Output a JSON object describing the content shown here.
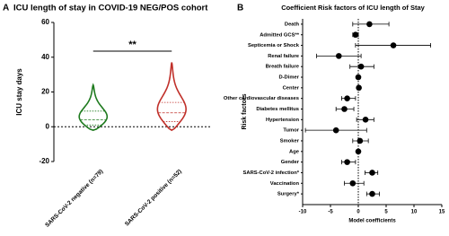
{
  "chart_data": [
    {
      "type": "violin",
      "panel": "A",
      "title": "ICU length of stay in COVID-19 NEG/POS cohort",
      "y_label": "ICU stay days",
      "categories": [
        "SARS-CoV-2 negative (n=79)",
        "SARS-CoV-2 positive (n=52)"
      ],
      "series": [
        {
          "color": "#1e7a1e",
          "min": -2,
          "q1": 1,
          "median": 4,
          "q3": 9,
          "max": 24
        },
        {
          "color": "#c0302a",
          "min": -2,
          "q1": 3,
          "median": 8,
          "q3": 14,
          "max": 37
        }
      ],
      "annotation": "**",
      "ylim": [
        -20,
        60
      ],
      "yticks": [
        -20,
        0,
        20,
        40,
        60
      ]
    },
    {
      "type": "forest",
      "panel": "B",
      "title": "Coefficient Risk factors of ICU length of Stay",
      "x_label": "Model coefficients",
      "y_label": "Risk factors",
      "categories": [
        "Death",
        "Admitted GCS**",
        "Septicemia or Shock",
        "Renal failure",
        "Breath failure",
        "D-Dimer",
        "Center",
        "Other cardiovascular diseases",
        "Diabetes mellitus",
        "Hypertension",
        "Tumor",
        "Smoker",
        "Age",
        "Gender",
        "SARS-CoV-2 infection*",
        "Vaccination",
        "Surgery*"
      ],
      "values": [
        2,
        -0.5,
        6.3,
        -3.5,
        0.5,
        0,
        0.1,
        -2,
        -2.5,
        1.3,
        -4,
        0.3,
        0,
        -2,
        2.5,
        -1,
        2.5
      ],
      "lower": [
        -1,
        -1,
        -0.5,
        -7.5,
        -1.5,
        -0.3,
        -0.2,
        -3,
        -4,
        -0.3,
        -9.5,
        -1,
        -0.2,
        -3,
        1.2,
        -2.5,
        1.5
      ],
      "upper": [
        5.5,
        0,
        13,
        0.5,
        2.8,
        0.3,
        0.4,
        -0.5,
        -0.8,
        2.8,
        1.5,
        1.8,
        0.2,
        -0.5,
        3.5,
        1,
        3.8
      ],
      "color": "#000000",
      "xlim": [
        -10,
        15
      ],
      "xticks": [
        -10,
        -5,
        0,
        5,
        10,
        15
      ]
    }
  ]
}
